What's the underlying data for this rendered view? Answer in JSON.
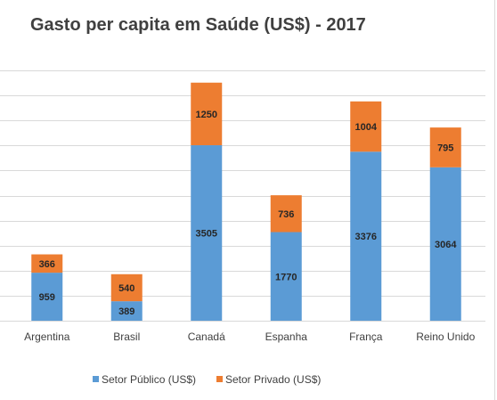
{
  "chart_data": {
    "type": "bar",
    "stacked": true,
    "title": "Gasto per capita em Saúde (US$) - 2017",
    "xlabel": "",
    "ylabel": "",
    "categories": [
      "Argentina",
      "Brasil",
      "Canadá",
      "Espanha",
      "França",
      "Reino Unido"
    ],
    "series": [
      {
        "name": "Setor Público (US$)",
        "color": "#5b9bd5",
        "values": [
          959,
          389,
          3505,
          1770,
          3376,
          3064
        ]
      },
      {
        "name": "Setor Privado (US$)",
        "color": "#ed7d31",
        "values": [
          366,
          540,
          1250,
          736,
          1004,
          795
        ]
      }
    ],
    "ylim": [
      0,
      5000
    ],
    "y_tick_step": 500,
    "y_tick_labels_shown": false,
    "grid": true,
    "legend": "bottom",
    "data_labels": true
  }
}
